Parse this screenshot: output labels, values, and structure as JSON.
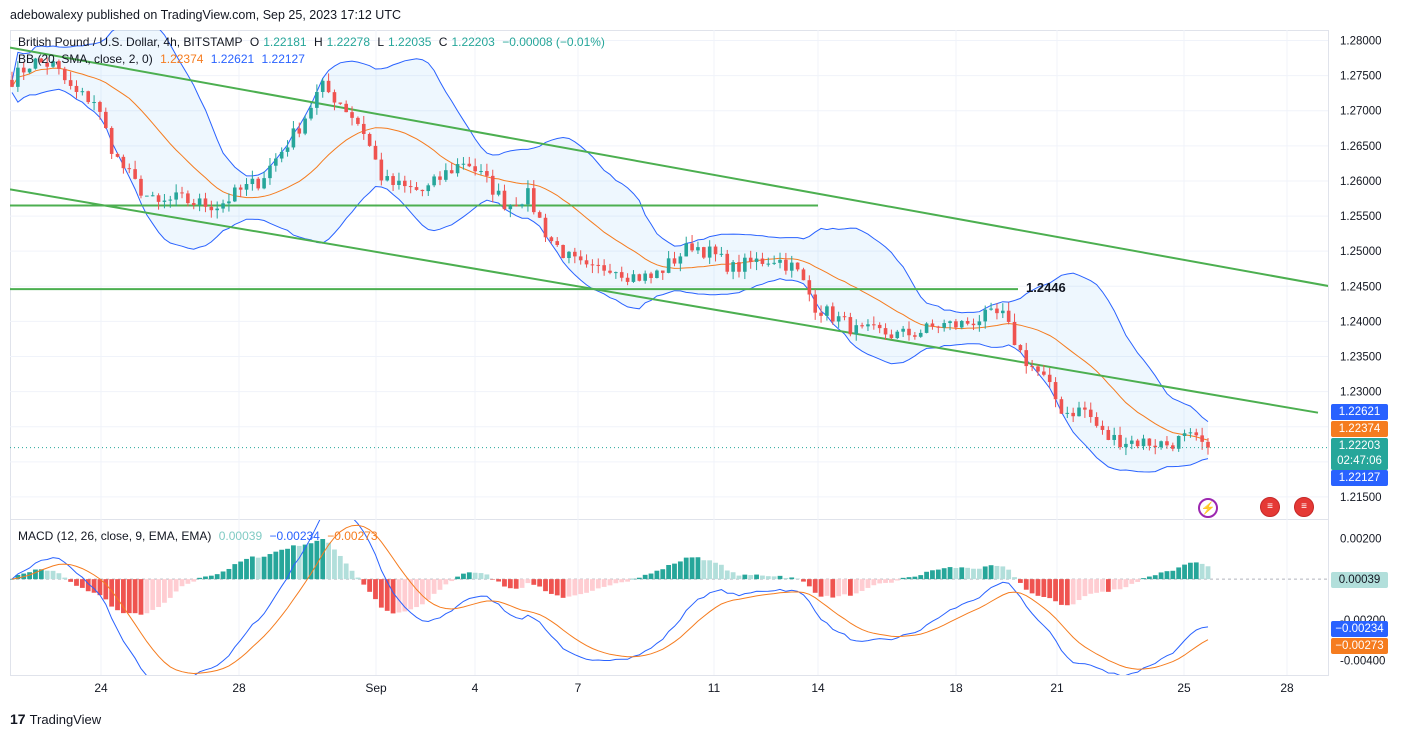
{
  "header": {
    "publisher_line": "adebowalexy published on TradingView.com, Sep 25, 2023 17:12 UTC"
  },
  "legend": {
    "symbol": "British Pound / U.S. Dollar, 4h, BITSTAMP",
    "ohlc": {
      "o_label": "O",
      "o": "1.22181",
      "h_label": "H",
      "h": "1.22278",
      "l_label": "L",
      "l": "1.22035",
      "c_label": "C",
      "c": "1.22203",
      "change": "−0.00008 (−0.01%)"
    },
    "bb_label": "BB (20, SMA, close, 2, 0)",
    "bb_values": [
      "1.22374",
      "1.22621",
      "1.22127"
    ],
    "macd_label": "MACD (12, 26, close, 9, EMA, EMA)",
    "macd_values": [
      "0.00039",
      "−0.00234",
      "−0.00273"
    ]
  },
  "colors": {
    "up": "#26a69a",
    "down": "#ef5350",
    "bb_basis": "#f57c1f",
    "bb_band": "#2962ff",
    "trend": "#4caf50",
    "macd_line": "#2962ff",
    "signal_line": "#f57c1f",
    "hist_up_strong": "#26a69a",
    "hist_up_weak": "#b2dfdb",
    "hist_down_strong": "#ef5350",
    "hist_down_weak": "#ffcdd2"
  },
  "price_tags": {
    "upper": "1.22621",
    "basis": "1.22374",
    "last": "1.22203",
    "countdown": "02:47:06",
    "lower": "1.22127"
  },
  "annotation": {
    "level_label": "1.2446"
  },
  "macd_tags": {
    "hist": "0.00039",
    "macd": "−0.00234",
    "signal": "−0.00273"
  },
  "footer": {
    "brand": "TradingView"
  },
  "chart_data": [
    {
      "type": "candlestick",
      "title": "British Pound / U.S. Dollar, 4h, BITSTAMP",
      "ylim": [
        1.212,
        1.2815
      ],
      "y_ticks": [
        "1.28000",
        "1.27500",
        "1.27000",
        "1.26500",
        "1.26000",
        "1.25500",
        "1.25000",
        "1.24500",
        "1.24000",
        "1.23500",
        "1.23000",
        "1.22500",
        "1.22000",
        "1.21500"
      ],
      "x_ticks": [
        "24",
        "28",
        "Sep",
        "4",
        "7",
        "11",
        "14",
        "18",
        "21",
        "25",
        "28"
      ],
      "close_path": [
        [
          "Aug 23",
          1.2745
        ],
        [
          "Aug 23",
          1.277
        ],
        [
          "Aug 23",
          1.2765
        ],
        [
          "Aug 24",
          1.2725
        ],
        [
          "Aug 24",
          1.2715
        ],
        [
          "Aug 24",
          1.2635
        ],
        [
          "Aug 25",
          1.2595
        ],
        [
          "Aug 25",
          1.2565
        ],
        [
          "Aug 26",
          1.2575
        ],
        [
          "Aug 27",
          1.2568
        ],
        [
          "Aug 28",
          1.2565
        ],
        [
          "Aug 28",
          1.2585
        ],
        [
          "Aug 29",
          1.26
        ],
        [
          "Aug 29",
          1.264
        ],
        [
          "Aug 30",
          1.268
        ],
        [
          "Aug 31",
          1.2735
        ],
        [
          "Aug 31",
          1.271
        ],
        [
          "Sep 1",
          1.2675
        ],
        [
          "Sep 1",
          1.26
        ],
        [
          "Sep 2",
          1.259
        ],
        [
          "Sep 3",
          1.2585
        ],
        [
          "Sep 4",
          1.261
        ],
        [
          "Sep 4",
          1.263
        ],
        [
          "Sep 5",
          1.26
        ],
        [
          "Sep 5",
          1.2565
        ],
        [
          "Sep 6",
          1.258
        ],
        [
          "Sep 6",
          1.252
        ],
        [
          "Sep 7",
          1.249
        ],
        [
          "Sep 7",
          1.247
        ],
        [
          "Sep 8",
          1.248
        ],
        [
          "Sep 9",
          1.2465
        ],
        [
          "Sep 10",
          1.2462
        ],
        [
          "Sep 11",
          1.2485
        ],
        [
          "Sep 11",
          1.251
        ],
        [
          "Sep 12",
          1.2495
        ],
        [
          "Sep 12",
          1.2475
        ],
        [
          "Sep 13",
          1.2485
        ],
        [
          "Sep 13",
          1.249
        ],
        [
          "Sep 14",
          1.2475
        ],
        [
          "Sep 14",
          1.242
        ],
        [
          "Sep 15",
          1.2405
        ],
        [
          "Sep 15",
          1.2385
        ],
        [
          "Sep 16",
          1.2385
        ],
        [
          "Sep 17",
          1.238
        ],
        [
          "Sep 18",
          1.2385
        ],
        [
          "Sep 18",
          1.2395
        ],
        [
          "Sep 19",
          1.2395
        ],
        [
          "Sep 19",
          1.2405
        ],
        [
          "Sep 20",
          1.241
        ],
        [
          "Sep 20",
          1.235
        ],
        [
          "Sep 21",
          1.232
        ],
        [
          "Sep 21",
          1.227
        ],
        [
          "Sep 22",
          1.2275
        ],
        [
          "Sep 22",
          1.2235
        ],
        [
          "Sep 23",
          1.223
        ],
        [
          "Sep 24",
          1.2228
        ],
        [
          "Sep 24",
          1.2225
        ],
        [
          "Sep 25",
          1.2235
        ],
        [
          "Sep 25",
          1.22203
        ]
      ],
      "series": [
        {
          "name": "BB basis",
          "value_last": 1.22374
        },
        {
          "name": "BB upper",
          "value_last": 1.22621
        },
        {
          "name": "BB lower",
          "value_last": 1.22127
        }
      ],
      "levels": [
        1.2565,
        1.2446
      ],
      "last_price": 1.22203
    },
    {
      "type": "macd",
      "title": "MACD (12, 26, close, 9, EMA, EMA)",
      "ylim": [
        -0.0047,
        0.0029
      ],
      "y_ticks": [
        "0.00200",
        "0.00000",
        "-0.00200",
        "-0.00400"
      ],
      "histogram_last": 0.00039,
      "macd_last": -0.00234,
      "signal_last": -0.00273
    }
  ]
}
